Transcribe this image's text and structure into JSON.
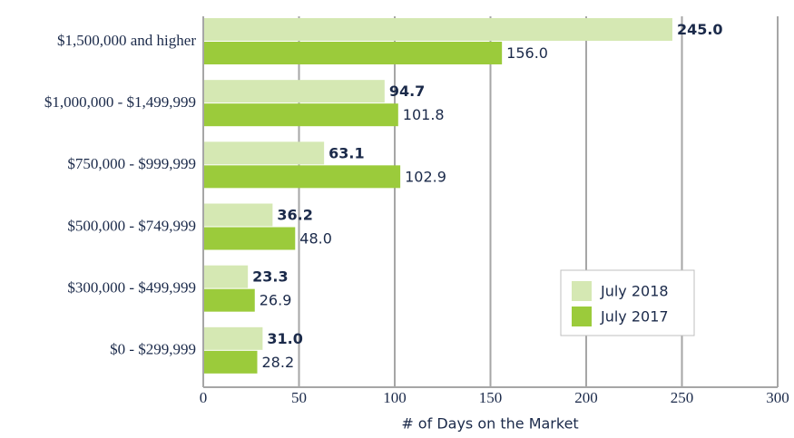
{
  "chart_data": {
    "type": "bar",
    "orientation": "horizontal",
    "categories": [
      "$1,500,000 and higher",
      "$1,000,000 - $1,499,999",
      "$750,000 - $999,999",
      "$500,000 - $749,999",
      "$300,000 - $499,999",
      "$0 - $299,999"
    ],
    "series": [
      {
        "name": "July 2018",
        "color": "#d5e8b3",
        "values": [
          245.0,
          94.7,
          63.1,
          36.2,
          23.3,
          31.0
        ],
        "value_labels": [
          "245.0",
          "94.7",
          "63.1",
          "36.2",
          "23.3",
          "31.0"
        ]
      },
      {
        "name": "July 2017",
        "color": "#9bcb3b",
        "values": [
          156.0,
          101.8,
          102.9,
          48.0,
          26.9,
          28.2
        ],
        "value_labels": [
          "156.0",
          "101.8",
          "102.9",
          "48.0",
          "26.9",
          "28.2"
        ]
      }
    ],
    "xlabel": "# of Days on the Market",
    "xlim": [
      0,
      300
    ],
    "xticks": [
      0,
      50,
      100,
      150,
      200,
      250,
      300
    ],
    "grid": true,
    "legend": "lower right"
  }
}
